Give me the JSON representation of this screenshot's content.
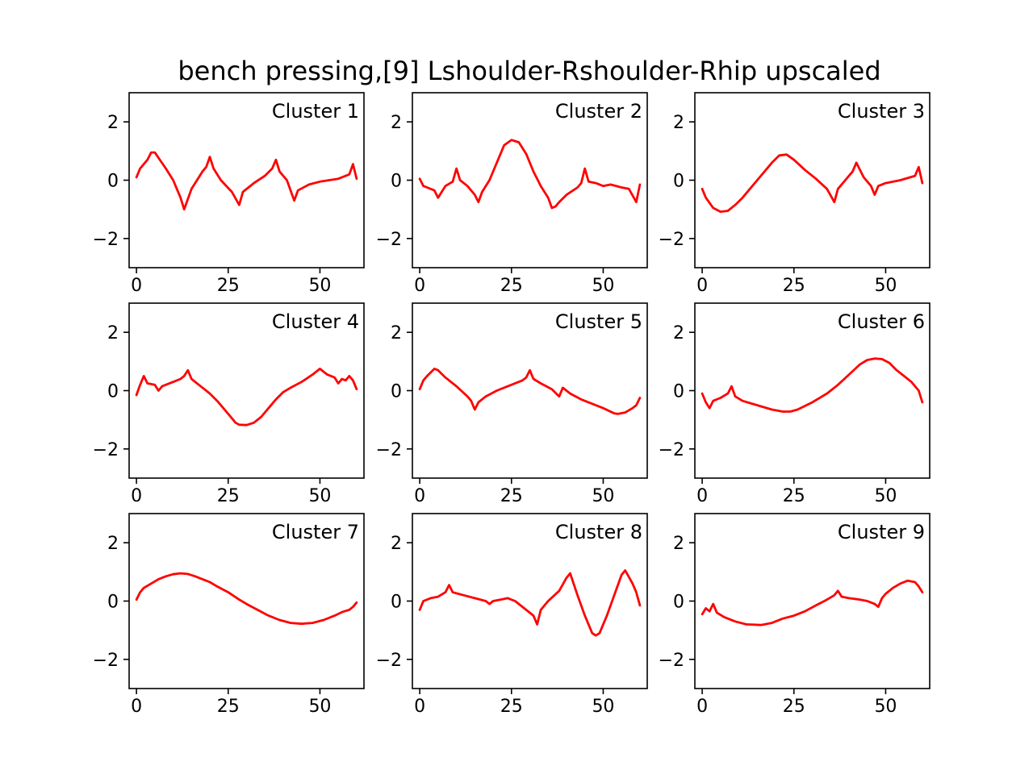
{
  "title": "bench pressing,[9] Lshoulder-Rshoulder-Rhip upscaled",
  "line_color": "#ff0000",
  "chart_data": [
    {
      "type": "line",
      "label": "Cluster 1",
      "xlim": [
        -2,
        62
      ],
      "ylim": [
        -3,
        3
      ],
      "xticks": [
        0,
        25,
        50
      ],
      "yticks": [
        -2,
        0,
        2
      ],
      "x": [
        0,
        1,
        3,
        4,
        5,
        8,
        10,
        12,
        13,
        15,
        18,
        19,
        20,
        21,
        23,
        26,
        28,
        29,
        32,
        35,
        37,
        38,
        39,
        41,
        43,
        44,
        47,
        50,
        55,
        58,
        59,
        60
      ],
      "values": [
        0.1,
        0.4,
        0.7,
        0.95,
        0.95,
        0.4,
        0.0,
        -0.6,
        -1.0,
        -0.3,
        0.3,
        0.45,
        0.8,
        0.4,
        0.0,
        -0.4,
        -0.85,
        -0.4,
        -0.1,
        0.15,
        0.4,
        0.7,
        0.3,
        0.0,
        -0.7,
        -0.35,
        -0.15,
        -0.05,
        0.05,
        0.2,
        0.55,
        0.05
      ]
    },
    {
      "type": "line",
      "label": "Cluster 2",
      "xlim": [
        -2,
        62
      ],
      "ylim": [
        -3,
        3
      ],
      "xticks": [
        0,
        25,
        50
      ],
      "yticks": [
        -2,
        0,
        2
      ],
      "x": [
        0,
        1,
        2,
        4,
        5,
        7,
        9,
        10,
        11,
        13,
        15,
        16,
        17,
        19,
        21,
        23,
        25,
        27,
        29,
        31,
        33,
        35,
        36,
        37,
        38,
        40,
        43,
        44,
        45,
        46,
        48,
        50,
        52,
        55,
        57,
        59,
        60
      ],
      "values": [
        0.05,
        -0.2,
        -0.25,
        -0.35,
        -0.6,
        -0.2,
        -0.05,
        0.4,
        0.0,
        -0.2,
        -0.5,
        -0.75,
        -0.4,
        0.0,
        0.6,
        1.2,
        1.38,
        1.3,
        0.9,
        0.3,
        -0.2,
        -0.6,
        -0.95,
        -0.9,
        -0.75,
        -0.5,
        -0.25,
        -0.1,
        0.4,
        -0.05,
        -0.1,
        -0.2,
        -0.15,
        -0.25,
        -0.3,
        -0.75,
        -0.15
      ]
    },
    {
      "type": "line",
      "label": "Cluster 3",
      "xlim": [
        -2,
        62
      ],
      "ylim": [
        -3,
        3
      ],
      "xticks": [
        0,
        25,
        50
      ],
      "yticks": [
        -2,
        0,
        2
      ],
      "x": [
        0,
        1,
        3,
        5,
        7,
        9,
        11,
        13,
        16,
        19,
        21,
        23,
        25,
        28,
        31,
        34,
        36,
        37,
        39,
        41,
        42,
        44,
        46,
        47,
        48,
        50,
        54,
        58,
        59,
        60
      ],
      "values": [
        -0.3,
        -0.6,
        -0.95,
        -1.08,
        -1.05,
        -0.85,
        -0.6,
        -0.3,
        0.15,
        0.6,
        0.85,
        0.88,
        0.7,
        0.35,
        0.05,
        -0.3,
        -0.75,
        -0.3,
        0.0,
        0.3,
        0.6,
        0.1,
        -0.2,
        -0.5,
        -0.2,
        -0.1,
        0.0,
        0.15,
        0.45,
        -0.1
      ]
    },
    {
      "type": "line",
      "label": "Cluster 4",
      "xlim": [
        -2,
        62
      ],
      "ylim": [
        -3,
        3
      ],
      "xticks": [
        0,
        25,
        50
      ],
      "yticks": [
        -2,
        0,
        2
      ],
      "x": [
        0,
        1,
        2,
        3,
        5,
        6,
        7,
        10,
        12,
        13,
        14,
        15,
        17,
        20,
        22,
        25,
        27,
        28,
        30,
        32,
        34,
        36,
        38,
        40,
        42,
        45,
        48,
        50,
        52,
        54,
        55,
        56,
        57,
        58,
        59,
        60
      ],
      "values": [
        -0.15,
        0.2,
        0.5,
        0.25,
        0.2,
        0.0,
        0.15,
        0.3,
        0.4,
        0.5,
        0.7,
        0.4,
        0.2,
        -0.1,
        -0.35,
        -0.8,
        -1.1,
        -1.17,
        -1.18,
        -1.1,
        -0.9,
        -0.6,
        -0.3,
        -0.05,
        0.1,
        0.3,
        0.55,
        0.75,
        0.55,
        0.45,
        0.25,
        0.4,
        0.35,
        0.5,
        0.35,
        0.05
      ]
    },
    {
      "type": "line",
      "label": "Cluster 5",
      "xlim": [
        -2,
        62
      ],
      "ylim": [
        -3,
        3
      ],
      "xticks": [
        0,
        25,
        50
      ],
      "yticks": [
        -2,
        0,
        2
      ],
      "x": [
        0,
        1,
        2,
        4,
        5,
        7,
        10,
        13,
        14,
        15,
        16,
        18,
        21,
        24,
        28,
        29,
        30,
        31,
        33,
        36,
        38,
        39,
        41,
        44,
        47,
        50,
        53,
        54,
        56,
        58,
        59,
        60
      ],
      "values": [
        0.05,
        0.35,
        0.5,
        0.75,
        0.7,
        0.45,
        0.15,
        -0.2,
        -0.35,
        -0.65,
        -0.4,
        -0.2,
        0.0,
        0.15,
        0.35,
        0.45,
        0.7,
        0.4,
        0.25,
        0.05,
        -0.2,
        0.1,
        -0.1,
        -0.3,
        -0.45,
        -0.6,
        -0.78,
        -0.8,
        -0.75,
        -0.6,
        -0.5,
        -0.25
      ]
    },
    {
      "type": "line",
      "label": "Cluster 6",
      "xlim": [
        -2,
        62
      ],
      "ylim": [
        -3,
        3
      ],
      "xticks": [
        0,
        25,
        50
      ],
      "yticks": [
        -2,
        0,
        2
      ],
      "x": [
        0,
        1,
        2,
        3,
        5,
        7,
        8,
        9,
        11,
        15,
        19,
        22,
        24,
        26,
        30,
        34,
        37,
        40,
        43,
        45,
        47,
        49,
        51,
        53,
        55,
        57,
        59,
        60
      ],
      "values": [
        -0.1,
        -0.4,
        -0.6,
        -0.35,
        -0.25,
        -0.1,
        0.15,
        -0.2,
        -0.35,
        -0.5,
        -0.65,
        -0.72,
        -0.72,
        -0.65,
        -0.4,
        -0.1,
        0.2,
        0.55,
        0.9,
        1.05,
        1.1,
        1.08,
        0.95,
        0.7,
        0.5,
        0.3,
        0.0,
        -0.4
      ]
    },
    {
      "type": "line",
      "label": "Cluster 7",
      "xlim": [
        -2,
        62
      ],
      "ylim": [
        -3,
        3
      ],
      "xticks": [
        0,
        25,
        50
      ],
      "yticks": [
        -2,
        0,
        2
      ],
      "x": [
        0,
        1,
        2,
        4,
        6,
        8,
        10,
        12,
        14,
        16,
        18,
        20,
        22,
        25,
        28,
        30,
        33,
        36,
        39,
        42,
        45,
        48,
        51,
        54,
        56,
        58,
        59,
        60
      ],
      "values": [
        0.05,
        0.3,
        0.45,
        0.6,
        0.75,
        0.85,
        0.92,
        0.95,
        0.93,
        0.85,
        0.75,
        0.65,
        0.5,
        0.3,
        0.05,
        -0.1,
        -0.3,
        -0.5,
        -0.65,
        -0.75,
        -0.78,
        -0.75,
        -0.65,
        -0.5,
        -0.38,
        -0.3,
        -0.2,
        -0.05
      ]
    },
    {
      "type": "line",
      "label": "Cluster 8",
      "xlim": [
        -2,
        62
      ],
      "ylim": [
        -3,
        3
      ],
      "xticks": [
        0,
        25,
        50
      ],
      "yticks": [
        -2,
        0,
        2
      ],
      "x": [
        0,
        1,
        3,
        5,
        7,
        8,
        9,
        12,
        15,
        18,
        19,
        20,
        22,
        24,
        26,
        29,
        31,
        32,
        33,
        35,
        38,
        40,
        41,
        43,
        45,
        47,
        48,
        49,
        51,
        53,
        55,
        56,
        58,
        59,
        60
      ],
      "values": [
        -0.3,
        0.0,
        0.1,
        0.15,
        0.3,
        0.55,
        0.3,
        0.2,
        0.1,
        0.0,
        -0.1,
        0.0,
        0.05,
        0.1,
        0.0,
        -0.3,
        -0.5,
        -0.8,
        -0.3,
        0.0,
        0.35,
        0.8,
        0.95,
        0.2,
        -0.5,
        -1.1,
        -1.18,
        -1.1,
        -0.5,
        0.2,
        0.9,
        1.05,
        0.6,
        0.3,
        -0.15
      ]
    },
    {
      "type": "line",
      "label": "Cluster 9",
      "xlim": [
        -2,
        62
      ],
      "ylim": [
        -3,
        3
      ],
      "xticks": [
        0,
        25,
        50
      ],
      "yticks": [
        -2,
        0,
        2
      ],
      "x": [
        0,
        1,
        2,
        3,
        4,
        6,
        9,
        12,
        16,
        19,
        22,
        25,
        28,
        31,
        34,
        36,
        37,
        38,
        40,
        43,
        45,
        47,
        48,
        49,
        50,
        52,
        54,
        56,
        58,
        59,
        60
      ],
      "values": [
        -0.45,
        -0.25,
        -0.35,
        -0.1,
        -0.4,
        -0.55,
        -0.7,
        -0.8,
        -0.82,
        -0.75,
        -0.6,
        -0.5,
        -0.35,
        -0.15,
        0.05,
        0.2,
        0.35,
        0.15,
        0.1,
        0.05,
        0.0,
        -0.1,
        -0.2,
        0.1,
        0.25,
        0.45,
        0.6,
        0.7,
        0.65,
        0.5,
        0.3
      ]
    }
  ]
}
